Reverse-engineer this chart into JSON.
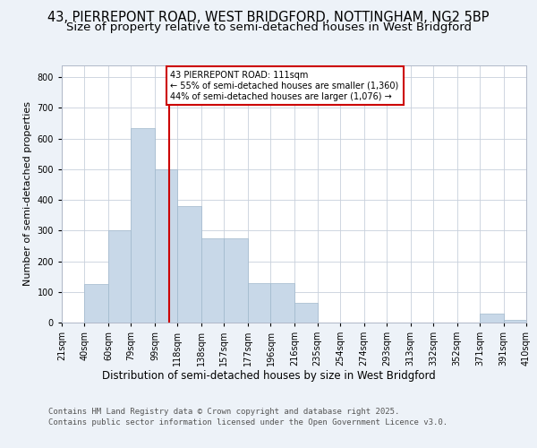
{
  "title_line1": "43, PIERREPONT ROAD, WEST BRIDGFORD, NOTTINGHAM, NG2 5BP",
  "title_line2": "Size of property relative to semi-detached houses in West Bridgford",
  "xlabel": "Distribution of semi-detached houses by size in West Bridgford",
  "ylabel": "Number of semi-detached properties",
  "bin_labels": [
    "21sqm",
    "40sqm",
    "60sqm",
    "79sqm",
    "99sqm",
    "118sqm",
    "138sqm",
    "157sqm",
    "177sqm",
    "196sqm",
    "216sqm",
    "235sqm",
    "254sqm",
    "274sqm",
    "293sqm",
    "313sqm",
    "332sqm",
    "352sqm",
    "371sqm",
    "391sqm",
    "410sqm"
  ],
  "bin_edges": [
    21,
    40,
    60,
    79,
    99,
    118,
    138,
    157,
    177,
    196,
    216,
    235,
    254,
    274,
    293,
    313,
    332,
    352,
    371,
    391,
    410
  ],
  "bar_heights": [
    0,
    125,
    300,
    635,
    500,
    380,
    275,
    275,
    130,
    130,
    65,
    0,
    0,
    0,
    0,
    0,
    0,
    0,
    30,
    10,
    5
  ],
  "bar_color": "#c8d8e8",
  "bar_edge_color": "#a0b8cc",
  "property_value": 111,
  "vline_color": "#cc0000",
  "annotation_box_color": "#cc0000",
  "annotation_text": "43 PIERREPONT ROAD: 111sqm\n← 55% of semi-detached houses are smaller (1,360)\n44% of semi-detached houses are larger (1,076) →",
  "ylim": [
    0,
    840
  ],
  "yticks": [
    0,
    100,
    200,
    300,
    400,
    500,
    600,
    700,
    800
  ],
  "background_color": "#edf2f8",
  "plot_background": "#ffffff",
  "grid_color": "#c8d0dc",
  "footer_line1": "Contains HM Land Registry data © Crown copyright and database right 2025.",
  "footer_line2": "Contains public sector information licensed under the Open Government Licence v3.0.",
  "title_fontsize": 10.5,
  "subtitle_fontsize": 9.5,
  "ylabel_fontsize": 8,
  "xlabel_fontsize": 8.5,
  "tick_fontsize": 7,
  "annotation_fontsize": 7,
  "footer_fontsize": 6.5
}
